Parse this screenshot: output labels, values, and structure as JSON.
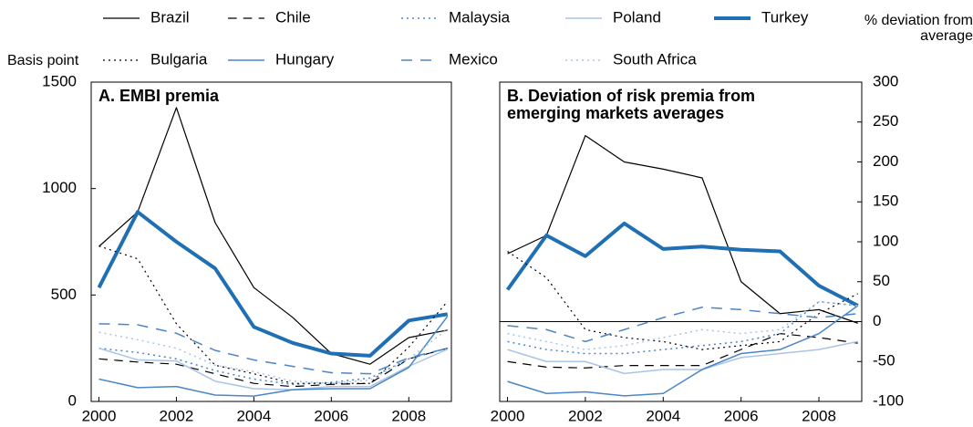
{
  "chart_data": [
    {
      "type": "line",
      "title": "A. EMBI premia",
      "y_label": "Basis point",
      "y_side": "left",
      "x": [
        2000,
        2001,
        2002,
        2003,
        2004,
        2005,
        2006,
        2007,
        2008,
        2009
      ],
      "xlim": [
        1999.8,
        2009.1
      ],
      "xticks": [
        2000,
        2002,
        2004,
        2006,
        2008
      ],
      "ylim": [
        0,
        1500
      ],
      "yticks": [
        0,
        500,
        1000,
        1500
      ],
      "series": [
        {
          "name": "Brazil",
          "color": "#000000",
          "dash": "solid",
          "width": 1.2,
          "values": [
            728,
            890,
            1380,
            840,
            535,
            395,
            225,
            175,
            300,
            335
          ]
        },
        {
          "name": "Chile",
          "color": "#000000",
          "dash": "dashed",
          "width": 1.2,
          "values": [
            200,
            185,
            175,
            130,
            85,
            70,
            80,
            85,
            200,
            250
          ]
        },
        {
          "name": "Malaysia",
          "color": "#4a86c8",
          "dash": "dotted",
          "width": 1.5,
          "values": [
            250,
            230,
            200,
            145,
            105,
            80,
            90,
            110,
            200,
            250
          ]
        },
        {
          "name": "Poland",
          "color": "#a9c4e6",
          "dash": "solid",
          "width": 1.5,
          "values": [
            250,
            195,
            190,
            95,
            60,
            55,
            70,
            70,
            165,
            245
          ]
        },
        {
          "name": "Turkey",
          "color": "#1f6fb4",
          "dash": "solid",
          "width": 4,
          "values": [
            535,
            890,
            750,
            625,
            350,
            275,
            225,
            215,
            380,
            410
          ]
        },
        {
          "name": "Bulgaria",
          "color": "#000000",
          "dash": "dotted",
          "width": 1.2,
          "values": [
            730,
            670,
            365,
            170,
            130,
            85,
            85,
            85,
            255,
            470
          ]
        },
        {
          "name": "Hungary",
          "color": "#4a86c8",
          "dash": "solid",
          "width": 1.5,
          "values": [
            105,
            65,
            70,
            30,
            25,
            55,
            60,
            60,
            160,
            400
          ]
        },
        {
          "name": "Mexico",
          "color": "#4a86c8",
          "dash": "dashed",
          "width": 1.5,
          "values": [
            365,
            360,
            320,
            240,
            195,
            165,
            135,
            130,
            205,
            250
          ]
        },
        {
          "name": "South Africa",
          "color": "#a9c4e6",
          "dash": "dotted",
          "width": 1.5,
          "values": [
            325,
            290,
            250,
            170,
            140,
            95,
            85,
            100,
            200,
            340
          ]
        }
      ]
    },
    {
      "type": "line",
      "title": "B. Deviation of risk premia from emerging markets averages",
      "y_label": "% deviation from average",
      "y_side": "right",
      "zero_line": true,
      "x": [
        2000,
        2001,
        2002,
        2003,
        2004,
        2005,
        2006,
        2007,
        2008,
        2009
      ],
      "xlim": [
        1999.8,
        2009.1
      ],
      "xticks": [
        2000,
        2002,
        2004,
        2006,
        2008
      ],
      "ylim": [
        -100,
        300
      ],
      "yticks": [
        -100,
        -50,
        0,
        50,
        100,
        150,
        200,
        250,
        300
      ],
      "series": [
        {
          "color": "#000000",
          "dash": "solid",
          "width": 1.2,
          "values": [
            85,
            108,
            233,
            200,
            191,
            180,
            50,
            10,
            15,
            -2
          ]
        },
        {
          "color": "#000000",
          "dash": "dashed",
          "width": 1.2,
          "values": [
            -50,
            -57,
            -58,
            -55,
            -55,
            -55,
            -35,
            -15,
            -20,
            -27
          ]
        },
        {
          "color": "#4a86c8",
          "dash": "dotted",
          "width": 1.5,
          "values": [
            -25,
            -35,
            -40,
            -40,
            -35,
            -30,
            -25,
            -15,
            25,
            20
          ]
        },
        {
          "color": "#a9c4e6",
          "dash": "solid",
          "width": 1.5,
          "values": [
            -35,
            -50,
            -50,
            -65,
            -60,
            -60,
            -45,
            -40,
            -35,
            -25
          ]
        },
        {
          "color": "#1f6fb4",
          "dash": "solid",
          "width": 4,
          "values": [
            40,
            108,
            82,
            123,
            91,
            94,
            90,
            88,
            45,
            20
          ]
        },
        {
          "color": "#000000",
          "dash": "dotted",
          "width": 1.2,
          "values": [
            88,
            55,
            -10,
            -20,
            -25,
            -35,
            -30,
            -25,
            10,
            35
          ]
        },
        {
          "color": "#4a86c8",
          "dash": "solid",
          "width": 1.5,
          "values": [
            -75,
            -90,
            -88,
            -93,
            -90,
            -60,
            -40,
            -35,
            -15,
            20
          ]
        },
        {
          "color": "#4a86c8",
          "dash": "dashed",
          "width": 1.5,
          "values": [
            -5,
            -10,
            -25,
            -10,
            5,
            18,
            15,
            10,
            5,
            10
          ]
        },
        {
          "color": "#a9c4e6",
          "dash": "dotted",
          "width": 1.5,
          "values": [
            -15,
            -25,
            -35,
            -30,
            -20,
            -10,
            -15,
            -10,
            25,
            20
          ]
        }
      ]
    }
  ]
}
